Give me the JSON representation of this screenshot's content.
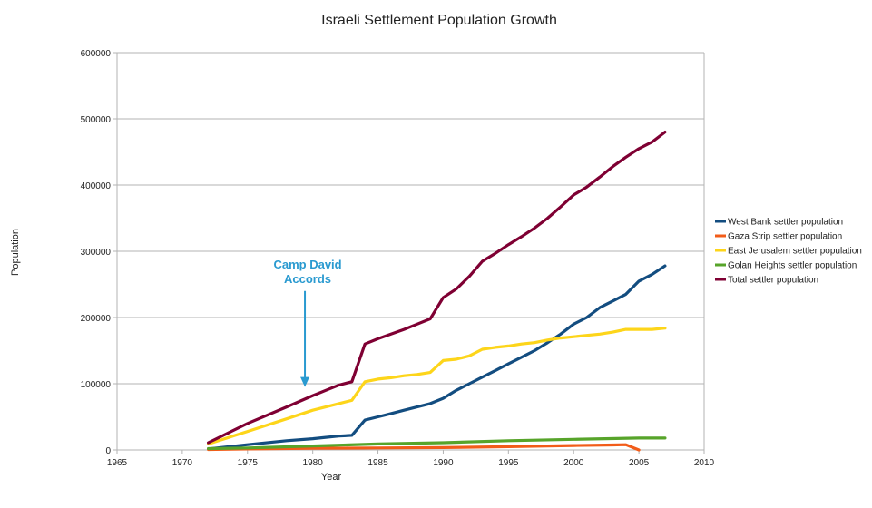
{
  "chart_data": {
    "type": "line",
    "title": "Israeli Settlement Population Growth",
    "xlabel": "Year",
    "ylabel": "Population",
    "xlim": [
      1965,
      2010
    ],
    "ylim": [
      0,
      600000
    ],
    "x_ticks": [
      1965,
      1970,
      1975,
      1980,
      1985,
      1990,
      1995,
      2000,
      2005,
      2010
    ],
    "y_ticks": [
      0,
      100000,
      200000,
      300000,
      400000,
      500000,
      600000
    ],
    "grid": "horizontal",
    "legend_position": "right",
    "annotation": {
      "lines": [
        "Camp David",
        "Accords"
      ],
      "year": 1979.4,
      "arrow_from_value": 240000,
      "arrow_to_value": 95000,
      "color": "#2a9ad0"
    },
    "series": [
      {
        "name": "West Bank settler population",
        "color": "#134d80",
        "x": [
          1972,
          1975,
          1978,
          1980,
          1981,
          1982,
          1983,
          1984,
          1985,
          1986,
          1987,
          1988,
          1989,
          1990,
          1991,
          1992,
          1993,
          1994,
          1995,
          1996,
          1997,
          1998,
          1999,
          2000,
          2001,
          2002,
          2003,
          2004,
          2005,
          2006,
          2007
        ],
        "values": [
          1500,
          8000,
          14000,
          17000,
          19000,
          21000,
          22000,
          45000,
          50000,
          55000,
          60000,
          65000,
          70000,
          78000,
          90000,
          100000,
          110000,
          120000,
          130000,
          140000,
          150000,
          162000,
          175000,
          190000,
          200000,
          215000,
          225000,
          235000,
          255000,
          265000,
          278000
        ]
      },
      {
        "name": "Gaza Strip settler population",
        "color": "#f25c19",
        "x": [
          1972,
          1975,
          1980,
          1985,
          1990,
          1995,
          2000,
          2003,
          2004,
          2005
        ],
        "values": [
          700,
          1500,
          2500,
          3000,
          3500,
          5000,
          6700,
          7500,
          8000,
          0
        ]
      },
      {
        "name": "East Jerusalem settler population",
        "color": "#fdd51a",
        "x": [
          1972,
          1975,
          1978,
          1980,
          1981,
          1982,
          1983,
          1984,
          1985,
          1986,
          1987,
          1988,
          1989,
          1990,
          1991,
          1992,
          1993,
          1994,
          1995,
          1996,
          1997,
          1998,
          1999,
          2000,
          2001,
          2002,
          2003,
          2004,
          2005,
          2006,
          2007
        ],
        "values": [
          9000,
          28000,
          47000,
          60000,
          65000,
          70000,
          75000,
          103000,
          107000,
          109000,
          112000,
          114000,
          117000,
          135000,
          137000,
          142000,
          152000,
          155000,
          157000,
          160000,
          162000,
          166000,
          169000,
          171000,
          173000,
          175000,
          178000,
          182000,
          182000,
          182000,
          184000
        ]
      },
      {
        "name": "Golan Heights settler population",
        "color": "#57a42a",
        "x": [
          1972,
          1975,
          1980,
          1985,
          1990,
          1995,
          2000,
          2005,
          2007
        ],
        "values": [
          2000,
          3000,
          6000,
          9000,
          11000,
          14000,
          16000,
          18000,
          18000
        ]
      },
      {
        "name": "Total settler population",
        "color": "#7f0033",
        "x": [
          1972,
          1975,
          1978,
          1980,
          1981,
          1982,
          1983,
          1984,
          1985,
          1986,
          1987,
          1988,
          1989,
          1990,
          1991,
          1992,
          1993,
          1994,
          1995,
          1996,
          1997,
          1998,
          1999,
          2000,
          2001,
          2002,
          2003,
          2004,
          2005,
          2006,
          2007
        ],
        "values": [
          11000,
          40000,
          65000,
          82000,
          90000,
          98000,
          103000,
          160000,
          168000,
          175000,
          182000,
          190000,
          198000,
          230000,
          243000,
          262000,
          285000,
          297000,
          310000,
          322000,
          335000,
          350000,
          367000,
          385000,
          397000,
          412000,
          428000,
          442000,
          455000,
          465000,
          480000
        ]
      }
    ]
  }
}
